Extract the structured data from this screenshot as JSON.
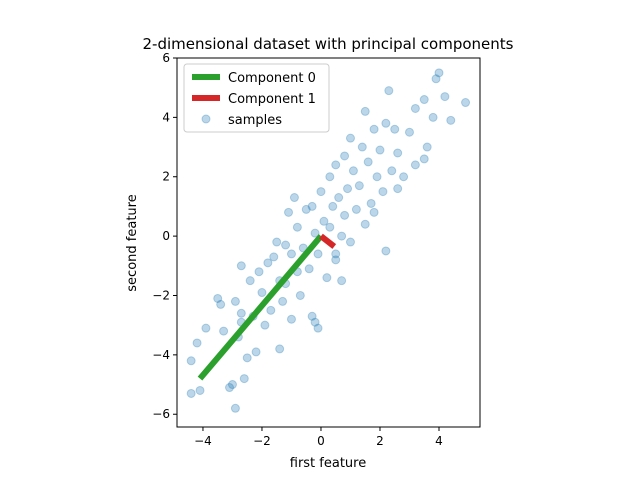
{
  "chart_data": {
    "type": "scatter",
    "title": "2-dimensional dataset with principal components",
    "xlabel": "first feature",
    "ylabel": "second feature",
    "xlim": [
      -4.88,
      5.39
    ],
    "ylim": [
      -6.43,
      6.0
    ],
    "xticks": [
      {
        "value": -4,
        "label": "−4"
      },
      {
        "value": -2,
        "label": "−2"
      },
      0,
      2,
      4
    ],
    "yticks": [
      {
        "value": -6,
        "label": "−6"
      },
      {
        "value": -4,
        "label": "−4"
      },
      {
        "value": -2,
        "label": "−2"
      },
      0,
      2,
      4,
      6
    ],
    "legend": "upper left",
    "series": [
      {
        "name": "Component 0",
        "type": "line",
        "color": "#2ca02c",
        "x": [
          0,
          -4.1
        ],
        "values": [
          0,
          -4.8
        ]
      },
      {
        "name": "Component 1",
        "type": "line",
        "color": "#d62728",
        "x": [
          0,
          0.45
        ],
        "values": [
          0,
          -0.35
        ]
      },
      {
        "name": "samples",
        "type": "scatter",
        "color": "#1f77b4",
        "x": [
          -4.4,
          -4.4,
          -4.1,
          -4.2,
          -3.9,
          -3.5,
          -3.4,
          -3.3,
          -3.1,
          -3.0,
          -2.9,
          -2.6,
          -2.5,
          -2.8,
          -2.7,
          -2.7,
          -2.9,
          -2.7,
          -2.4,
          -2.3,
          -2.2,
          -2.1,
          -2.0,
          -1.9,
          -1.8,
          -1.7,
          -1.6,
          -1.5,
          -1.4,
          -1.4,
          -1.3,
          -1.2,
          -1.2,
          -1.1,
          -1.0,
          -1.0,
          -0.9,
          -0.8,
          -0.8,
          -0.7,
          -0.6,
          -0.5,
          -0.4,
          -0.3,
          -0.2,
          -0.2,
          -0.1,
          -0.1,
          0.0,
          0.1,
          0.2,
          0.3,
          0.3,
          0.4,
          0.5,
          0.5,
          0.6,
          0.7,
          0.7,
          0.8,
          0.8,
          0.9,
          1.0,
          1.0,
          1.1,
          1.2,
          1.3,
          1.4,
          1.5,
          1.5,
          1.6,
          1.7,
          1.8,
          1.9,
          2.0,
          2.1,
          2.2,
          2.2,
          2.3,
          2.4,
          2.5,
          2.6,
          2.8,
          3.0,
          3.2,
          3.2,
          3.5,
          3.6,
          3.8,
          4.0,
          4.2,
          4.4,
          4.9,
          3.9,
          3.5,
          0.5,
          1.8,
          2.6,
          -0.3
        ],
        "values": [
          -5.3,
          -4.2,
          -5.2,
          -3.6,
          -3.1,
          -2.1,
          -2.3,
          -3.2,
          -5.1,
          -5.0,
          -5.8,
          -4.8,
          -4.1,
          -3.4,
          -2.6,
          -2.9,
          -2.2,
          -1.0,
          -1.5,
          -2.7,
          -3.9,
          -1.2,
          -1.9,
          -3.0,
          -0.9,
          -2.5,
          -0.7,
          -0.2,
          -1.5,
          -3.8,
          -2.2,
          -0.3,
          -1.6,
          0.8,
          -0.6,
          -2.8,
          1.3,
          0.3,
          -1.2,
          -2.0,
          -0.4,
          0.9,
          -1.1,
          1.0,
          0.1,
          -2.9,
          -3.1,
          -0.6,
          1.5,
          0.5,
          -1.4,
          2.0,
          0.3,
          1.0,
          -0.6,
          2.4,
          1.3,
          -1.5,
          0.0,
          2.7,
          0.7,
          1.6,
          3.3,
          -0.2,
          2.2,
          0.9,
          1.7,
          3.0,
          0.4,
          4.2,
          2.5,
          1.1,
          3.6,
          2.0,
          2.9,
          1.5,
          3.8,
          -0.5,
          4.9,
          2.2,
          3.6,
          2.8,
          2.0,
          3.5,
          4.3,
          2.4,
          4.6,
          3.0,
          4.0,
          5.5,
          4.7,
          3.9,
          4.5,
          5.3,
          2.6,
          -0.8,
          0.8,
          1.6,
          -2.7
        ]
      }
    ]
  }
}
